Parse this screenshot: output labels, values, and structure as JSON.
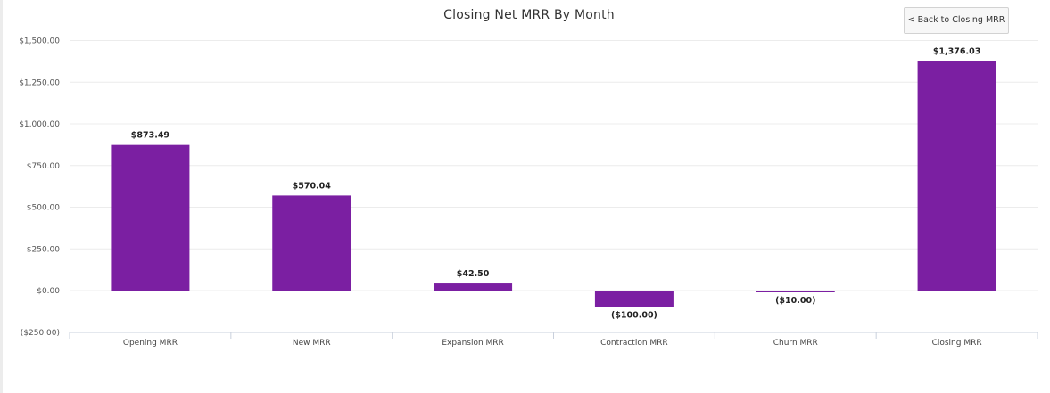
{
  "chart_data": {
    "type": "bar",
    "title": "Closing Net MRR By Month",
    "categories": [
      "Opening MRR",
      "New MRR",
      "Expansion MRR",
      "Contraction MRR",
      "Churn MRR",
      "Closing MRR"
    ],
    "values": [
      873.49,
      570.04,
      42.5,
      -100.0,
      -10.0,
      1376.03
    ],
    "data_labels": [
      "$873.49",
      "$570.04",
      "$42.50",
      "($100.00)",
      "($10.00)",
      "$1,376.03"
    ],
    "y_ticks": [
      {
        "value": 1500,
        "label": "$1,500.00"
      },
      {
        "value": 1250,
        "label": "$1,250.00"
      },
      {
        "value": 1000,
        "label": "$1,000.00"
      },
      {
        "value": 750,
        "label": "$750.00"
      },
      {
        "value": 500,
        "label": "$500.00"
      },
      {
        "value": 250,
        "label": "$250.00"
      },
      {
        "value": 0,
        "label": "$0.00"
      },
      {
        "value": -250,
        "label": "($250.00)"
      }
    ],
    "ylim": [
      -250,
      1500
    ],
    "xlabel": "",
    "ylabel": "",
    "grid": true,
    "legend": "none",
    "bar_color": "#7b1fa2"
  },
  "toolbar": {
    "back_button_label": "< Back to Closing MRR"
  }
}
